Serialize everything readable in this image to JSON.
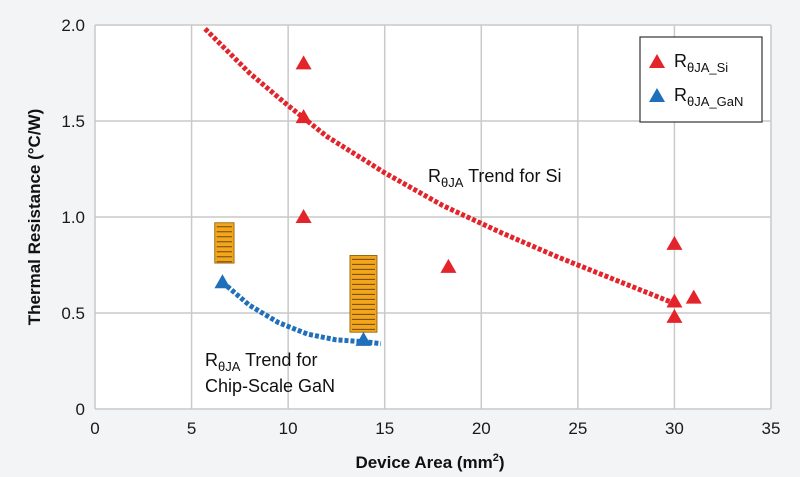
{
  "chart_data": {
    "type": "scatter",
    "xlabel": "Device Area (mm",
    "xlabel_sup": "2",
    "xlabel_end": ")",
    "ylabel": "Thermal Resistance (°C/W)",
    "xlim": [
      0,
      35
    ],
    "ylim": [
      0,
      2.0
    ],
    "x_ticks": [
      0,
      5,
      10,
      15,
      20,
      25,
      30,
      35
    ],
    "y_ticks": [
      "0",
      "0.5",
      "1.0",
      "1.5",
      "2.0"
    ],
    "grid": true,
    "legend_position": "top-right",
    "series": [
      {
        "name": "RθJA_Si",
        "name_main": "R",
        "name_sub": "θJA_Si",
        "color": "#e3242b",
        "marker": "triangle",
        "points": [
          {
            "x": 10.8,
            "y": 1.8
          },
          {
            "x": 10.8,
            "y": 1.52
          },
          {
            "x": 10.8,
            "y": 1.0
          },
          {
            "x": 18.3,
            "y": 0.74
          },
          {
            "x": 30.0,
            "y": 0.86
          },
          {
            "x": 30.0,
            "y": 0.56
          },
          {
            "x": 30.0,
            "y": 0.48
          },
          {
            "x": 31.0,
            "y": 0.58
          }
        ]
      },
      {
        "name": "RθJA_GaN",
        "name_main": "R",
        "name_sub": "θJA_GaN",
        "color": "#1f6fba",
        "marker": "triangle",
        "points": [
          {
            "x": 6.6,
            "y": 0.66
          },
          {
            "x": 13.9,
            "y": 0.36
          }
        ]
      }
    ],
    "trends": [
      {
        "color": "#e3242b",
        "points": [
          [
            5.7,
            1.98
          ],
          [
            8,
            1.75
          ],
          [
            10,
            1.58
          ],
          [
            12,
            1.42
          ],
          [
            15,
            1.23
          ],
          [
            18,
            1.06
          ],
          [
            21,
            0.92
          ],
          [
            24,
            0.79
          ],
          [
            27,
            0.67
          ],
          [
            30,
            0.55
          ]
        ]
      },
      {
        "color": "#1f6fba",
        "points": [
          [
            6.6,
            0.66
          ],
          [
            8,
            0.54
          ],
          [
            9.5,
            0.45
          ],
          [
            11,
            0.39
          ],
          [
            12.5,
            0.36
          ],
          [
            14,
            0.35
          ],
          [
            14.8,
            0.34
          ]
        ]
      }
    ],
    "annotations": [
      {
        "main": "R",
        "sub": "θJA",
        "text": " Trend for Si"
      },
      {
        "main": "R",
        "sub": "θJA",
        "text": " Trend for",
        "line2": "Chip-Scale GaN"
      }
    ],
    "chip_icons": [
      {
        "x": 6.7,
        "y_top": 0.97,
        "y_bottom": 0.76,
        "width": 1.0
      },
      {
        "x": 13.9,
        "y_top": 0.8,
        "y_bottom": 0.4,
        "width": 1.4
      }
    ],
    "chip_color": "#f3a51c"
  }
}
